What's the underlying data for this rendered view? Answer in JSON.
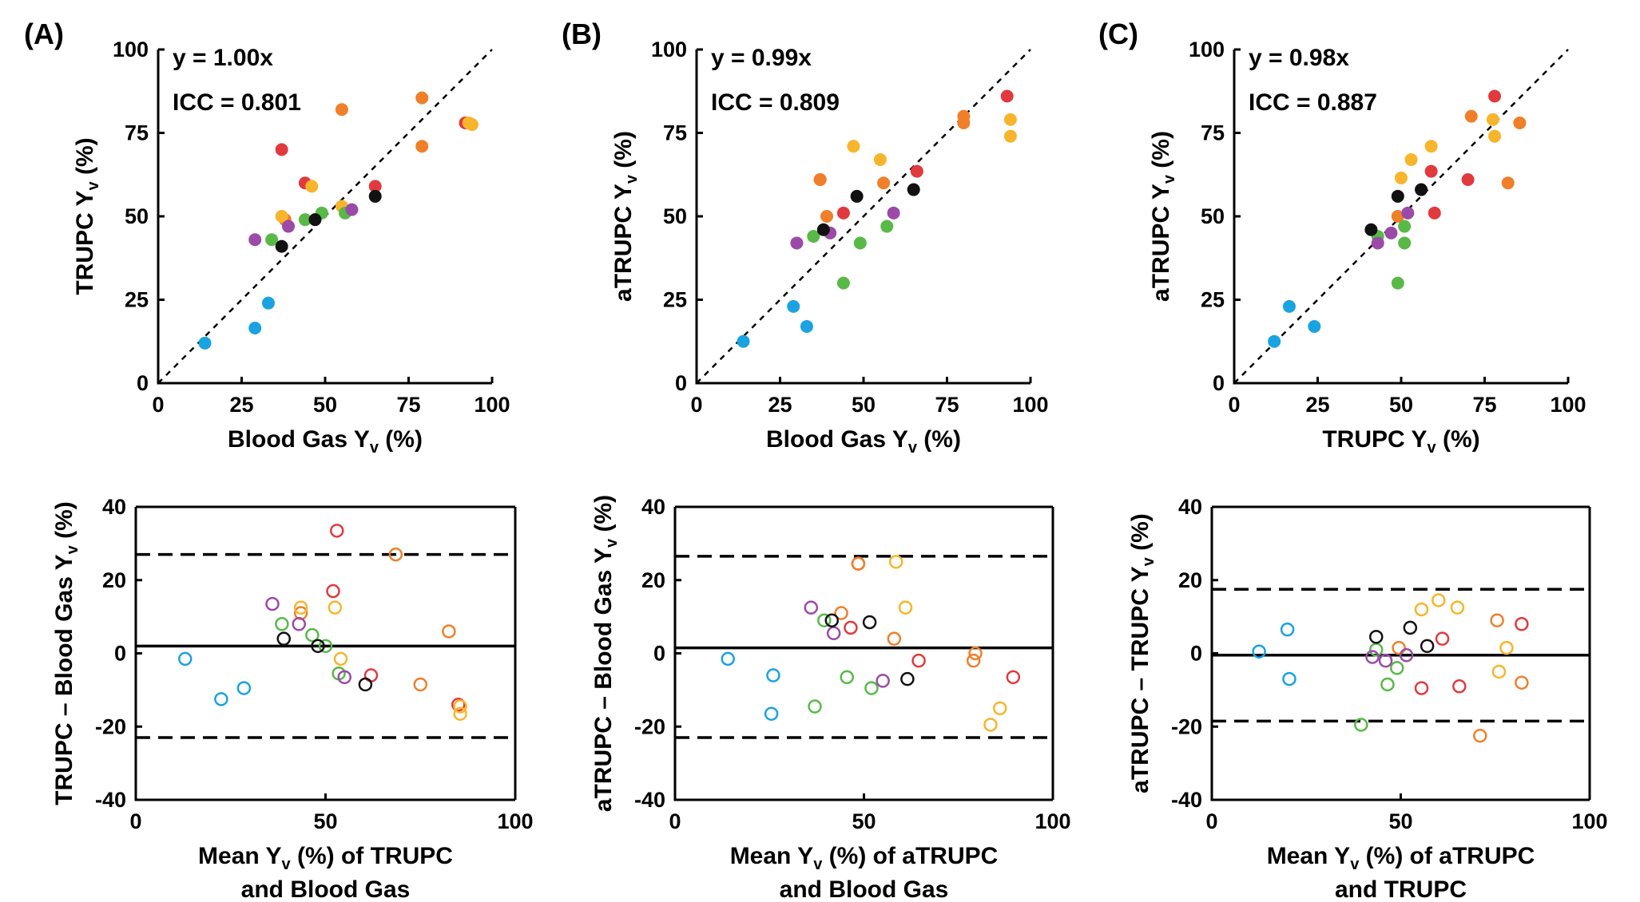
{
  "panel_labels": [
    "(A)",
    "(B)",
    "(C)"
  ],
  "colors": {
    "blue": "#1aa3e0",
    "red": "#e03a3e",
    "orange": "#f07f2a",
    "yellow": "#f7b52b",
    "green": "#58b947",
    "purple": "#9b4aa8",
    "black": "#111111"
  },
  "chart_data": [
    {
      "type": "scatter",
      "panel": "(A)",
      "xlabel": "Blood Gas Y",
      "xlabel_sub": "v",
      "xlabel_suffix": " (%)",
      "ylabel": "TRUPC Y",
      "ylabel_sub": "v",
      "ylabel_suffix": " (%)",
      "xlim": [
        0,
        100
      ],
      "ylim": [
        0,
        100
      ],
      "xticks": [
        "0",
        "25",
        "50",
        "75",
        "100"
      ],
      "yticks": [
        "0",
        "25",
        "50",
        "75",
        "100"
      ],
      "annotations": [
        "y = 1.00x",
        "ICC = 0.801"
      ],
      "identity_line": true,
      "points": [
        {
          "x": 14,
          "y": 12,
          "c": "blue"
        },
        {
          "x": 29,
          "y": 16.5,
          "c": "blue"
        },
        {
          "x": 33,
          "y": 24,
          "c": "blue"
        },
        {
          "x": 37,
          "y": 70,
          "c": "red"
        },
        {
          "x": 44,
          "y": 60,
          "c": "red"
        },
        {
          "x": 65,
          "y": 59,
          "c": "red"
        },
        {
          "x": 92,
          "y": 78,
          "c": "red"
        },
        {
          "x": 55,
          "y": 82,
          "c": "orange"
        },
        {
          "x": 79,
          "y": 85.5,
          "c": "orange"
        },
        {
          "x": 79,
          "y": 71,
          "c": "orange"
        },
        {
          "x": 38,
          "y": 49,
          "c": "orange"
        },
        {
          "x": 37,
          "y": 50,
          "c": "yellow"
        },
        {
          "x": 46,
          "y": 59,
          "c": "yellow"
        },
        {
          "x": 55,
          "y": 53,
          "c": "yellow"
        },
        {
          "x": 93,
          "y": 78,
          "c": "yellow"
        },
        {
          "x": 94,
          "y": 77.5,
          "c": "yellow"
        },
        {
          "x": 34,
          "y": 43,
          "c": "green"
        },
        {
          "x": 44,
          "y": 49,
          "c": "green"
        },
        {
          "x": 49,
          "y": 51,
          "c": "green"
        },
        {
          "x": 56,
          "y": 51,
          "c": "green"
        },
        {
          "x": 29,
          "y": 43,
          "c": "purple"
        },
        {
          "x": 39,
          "y": 47,
          "c": "purple"
        },
        {
          "x": 58,
          "y": 52,
          "c": "purple"
        },
        {
          "x": 37,
          "y": 41,
          "c": "black"
        },
        {
          "x": 47,
          "y": 49,
          "c": "black"
        },
        {
          "x": 65,
          "y": 56,
          "c": "black"
        }
      ]
    },
    {
      "type": "scatter",
      "panel": "(B)",
      "xlabel": "Blood Gas Y",
      "xlabel_sub": "v",
      "xlabel_suffix": " (%)",
      "ylabel": "aTRUPC Y",
      "ylabel_sub": "v",
      "ylabel_suffix": " (%)",
      "xlim": [
        0,
        100
      ],
      "ylim": [
        0,
        100
      ],
      "xticks": [
        "0",
        "25",
        "50",
        "75",
        "100"
      ],
      "yticks": [
        "0",
        "25",
        "50",
        "75",
        "100"
      ],
      "annotations": [
        "y = 0.99x",
        "ICC = 0.809"
      ],
      "identity_line": true,
      "points": [
        {
          "x": 14,
          "y": 12.5,
          "c": "blue"
        },
        {
          "x": 29,
          "y": 23,
          "c": "blue"
        },
        {
          "x": 33,
          "y": 17,
          "c": "blue"
        },
        {
          "x": 37,
          "y": 61,
          "c": "red"
        },
        {
          "x": 44,
          "y": 51,
          "c": "red"
        },
        {
          "x": 66,
          "y": 63.5,
          "c": "red"
        },
        {
          "x": 93,
          "y": 86,
          "c": "red"
        },
        {
          "x": 37,
          "y": 61,
          "c": "orange"
        },
        {
          "x": 39,
          "y": 50,
          "c": "orange"
        },
        {
          "x": 56,
          "y": 60,
          "c": "orange"
        },
        {
          "x": 80,
          "y": 80,
          "c": "orange"
        },
        {
          "x": 80,
          "y": 78,
          "c": "orange"
        },
        {
          "x": 47,
          "y": 71,
          "c": "yellow"
        },
        {
          "x": 55,
          "y": 67,
          "c": "yellow"
        },
        {
          "x": 94,
          "y": 79,
          "c": "yellow"
        },
        {
          "x": 94,
          "y": 74,
          "c": "yellow"
        },
        {
          "x": 44,
          "y": 30,
          "c": "green"
        },
        {
          "x": 49,
          "y": 42,
          "c": "green"
        },
        {
          "x": 57,
          "y": 47,
          "c": "green"
        },
        {
          "x": 35,
          "y": 44,
          "c": "green"
        },
        {
          "x": 30,
          "y": 42,
          "c": "purple"
        },
        {
          "x": 40,
          "y": 45,
          "c": "purple"
        },
        {
          "x": 59,
          "y": 51,
          "c": "purple"
        },
        {
          "x": 38,
          "y": 46,
          "c": "black"
        },
        {
          "x": 48,
          "y": 56,
          "c": "black"
        },
        {
          "x": 65,
          "y": 58,
          "c": "black"
        }
      ]
    },
    {
      "type": "scatter",
      "panel": "(C)",
      "xlabel": "TRUPC Y",
      "xlabel_sub": "v",
      "xlabel_suffix": " (%)",
      "ylabel": "aTRUPC Y",
      "ylabel_sub": "v",
      "ylabel_suffix": " (%)",
      "xlim": [
        0,
        100
      ],
      "ylim": [
        0,
        100
      ],
      "xticks": [
        "0",
        "25",
        "50",
        "75",
        "100"
      ],
      "yticks": [
        "0",
        "25",
        "50",
        "75",
        "100"
      ],
      "annotations": [
        "y = 0.98x",
        "ICC = 0.887"
      ],
      "identity_line": true,
      "points": [
        {
          "x": 12,
          "y": 12.5,
          "c": "blue"
        },
        {
          "x": 16.5,
          "y": 23,
          "c": "blue"
        },
        {
          "x": 24,
          "y": 17,
          "c": "blue"
        },
        {
          "x": 70,
          "y": 61,
          "c": "red"
        },
        {
          "x": 60,
          "y": 51,
          "c": "red"
        },
        {
          "x": 59,
          "y": 63.5,
          "c": "red"
        },
        {
          "x": 78,
          "y": 86,
          "c": "red"
        },
        {
          "x": 49,
          "y": 50,
          "c": "orange"
        },
        {
          "x": 82,
          "y": 60,
          "c": "orange"
        },
        {
          "x": 85.5,
          "y": 78,
          "c": "orange"
        },
        {
          "x": 71,
          "y": 80,
          "c": "orange"
        },
        {
          "x": 50,
          "y": 61.5,
          "c": "yellow"
        },
        {
          "x": 53,
          "y": 67,
          "c": "yellow"
        },
        {
          "x": 59,
          "y": 71,
          "c": "yellow"
        },
        {
          "x": 77.5,
          "y": 79,
          "c": "yellow"
        },
        {
          "x": 78,
          "y": 74,
          "c": "yellow"
        },
        {
          "x": 43,
          "y": 44,
          "c": "green"
        },
        {
          "x": 49,
          "y": 30,
          "c": "green"
        },
        {
          "x": 51,
          "y": 42,
          "c": "green"
        },
        {
          "x": 51,
          "y": 47,
          "c": "green"
        },
        {
          "x": 43,
          "y": 42,
          "c": "purple"
        },
        {
          "x": 47,
          "y": 45,
          "c": "purple"
        },
        {
          "x": 52,
          "y": 51,
          "c": "purple"
        },
        {
          "x": 41,
          "y": 46,
          "c": "black"
        },
        {
          "x": 49,
          "y": 56,
          "c": "black"
        },
        {
          "x": 56,
          "y": 58,
          "c": "black"
        }
      ]
    },
    {
      "type": "scatter",
      "panel": "(A)",
      "subtype": "bland-altman",
      "xlabel": "Mean Y",
      "xlabel_sub": "v",
      "xlabel_suffix": " (%) of TRUPC",
      "xlabel_line2": "and Blood Gas",
      "ylabel": "TRUPC – Blood Gas Y",
      "ylabel_sub": "v",
      "ylabel_suffix": " (%)",
      "xlim": [
        0,
        100
      ],
      "ylim": [
        -40,
        40
      ],
      "xticks": [
        "0",
        "50",
        "100"
      ],
      "yticks": [
        "-40",
        "-20",
        "0",
        "20",
        "40"
      ],
      "mean_line": 2,
      "limits_of_agreement": [
        27,
        -23
      ],
      "points": [
        {
          "x": 13,
          "y": -1.5,
          "c": "blue"
        },
        {
          "x": 22.5,
          "y": -12.5,
          "c": "blue"
        },
        {
          "x": 28.5,
          "y": -9.5,
          "c": "blue"
        },
        {
          "x": 53,
          "y": 33.5,
          "c": "red"
        },
        {
          "x": 52,
          "y": 17,
          "c": "red"
        },
        {
          "x": 62,
          "y": -6,
          "c": "red"
        },
        {
          "x": 85,
          "y": -14,
          "c": "red"
        },
        {
          "x": 68.5,
          "y": 27,
          "c": "orange"
        },
        {
          "x": 75,
          "y": -8.5,
          "c": "orange"
        },
        {
          "x": 82.5,
          "y": 6,
          "c": "orange"
        },
        {
          "x": 43.5,
          "y": 11,
          "c": "orange"
        },
        {
          "x": 43.5,
          "y": 12.5,
          "c": "yellow"
        },
        {
          "x": 52.5,
          "y": 12.5,
          "c": "yellow"
        },
        {
          "x": 54,
          "y": -1.5,
          "c": "yellow"
        },
        {
          "x": 85.5,
          "y": -14.5,
          "c": "yellow"
        },
        {
          "x": 85.5,
          "y": -16.5,
          "c": "yellow"
        },
        {
          "x": 38.5,
          "y": 8,
          "c": "green"
        },
        {
          "x": 46.5,
          "y": 5,
          "c": "green"
        },
        {
          "x": 50,
          "y": 2,
          "c": "green"
        },
        {
          "x": 53.5,
          "y": -5.5,
          "c": "green"
        },
        {
          "x": 36,
          "y": 13.5,
          "c": "purple"
        },
        {
          "x": 43,
          "y": 8,
          "c": "purple"
        },
        {
          "x": 55,
          "y": -6.5,
          "c": "purple"
        },
        {
          "x": 39,
          "y": 4,
          "c": "black"
        },
        {
          "x": 48,
          "y": 2,
          "c": "black"
        },
        {
          "x": 60.5,
          "y": -8.5,
          "c": "black"
        }
      ]
    },
    {
      "type": "scatter",
      "panel": "(B)",
      "subtype": "bland-altman",
      "xlabel": "Mean Y",
      "xlabel_sub": "v",
      "xlabel_suffix": " (%) of aTRUPC",
      "xlabel_line2": "and Blood Gas",
      "ylabel": "aTRUPC – Blood Gas Y",
      "ylabel_sub": "v",
      "ylabel_suffix": " (%)",
      "xlim": [
        0,
        100
      ],
      "ylim": [
        -40,
        40
      ],
      "xticks": [
        "0",
        "50",
        "100"
      ],
      "yticks": [
        "-40",
        "-20",
        "0",
        "20",
        "40"
      ],
      "mean_line": 1.5,
      "limits_of_agreement": [
        26.5,
        -23
      ],
      "points": [
        {
          "x": 14,
          "y": -1.5,
          "c": "blue"
        },
        {
          "x": 26,
          "y": -6,
          "c": "blue"
        },
        {
          "x": 25.5,
          "y": -16.5,
          "c": "blue"
        },
        {
          "x": 48.5,
          "y": 24.5,
          "c": "red"
        },
        {
          "x": 46.5,
          "y": 7,
          "c": "red"
        },
        {
          "x": 64.5,
          "y": -2,
          "c": "red"
        },
        {
          "x": 89.5,
          "y": -6.5,
          "c": "red"
        },
        {
          "x": 48.5,
          "y": 24.5,
          "c": "orange"
        },
        {
          "x": 44,
          "y": 11,
          "c": "orange"
        },
        {
          "x": 58,
          "y": 4,
          "c": "orange"
        },
        {
          "x": 79.5,
          "y": 0,
          "c": "orange"
        },
        {
          "x": 79,
          "y": -2,
          "c": "orange"
        },
        {
          "x": 58.5,
          "y": 25,
          "c": "yellow"
        },
        {
          "x": 61,
          "y": 12.5,
          "c": "yellow"
        },
        {
          "x": 86,
          "y": -15,
          "c": "yellow"
        },
        {
          "x": 83.5,
          "y": -19.5,
          "c": "yellow"
        },
        {
          "x": 37,
          "y": -14.5,
          "c": "green"
        },
        {
          "x": 45.5,
          "y": -6.5,
          "c": "green"
        },
        {
          "x": 52,
          "y": -9.5,
          "c": "green"
        },
        {
          "x": 39.5,
          "y": 9,
          "c": "green"
        },
        {
          "x": 36,
          "y": 12.5,
          "c": "purple"
        },
        {
          "x": 42,
          "y": 5.5,
          "c": "purple"
        },
        {
          "x": 55,
          "y": -7.5,
          "c": "purple"
        },
        {
          "x": 41.5,
          "y": 9,
          "c": "black"
        },
        {
          "x": 51.5,
          "y": 8.5,
          "c": "black"
        },
        {
          "x": 61.5,
          "y": -7,
          "c": "black"
        }
      ]
    },
    {
      "type": "scatter",
      "panel": "(C)",
      "subtype": "bland-altman",
      "xlabel": "Mean Y",
      "xlabel_sub": "v",
      "xlabel_suffix": " (%) of aTRUPC",
      "xlabel_line2": "and TRUPC",
      "ylabel": "aTRUPC – TRUPC Y",
      "ylabel_sub": "v",
      "ylabel_suffix": " (%)",
      "xlim": [
        0,
        100
      ],
      "ylim": [
        -40,
        40
      ],
      "xticks": [
        "0",
        "50",
        "100"
      ],
      "yticks": [
        "-40",
        "-20",
        "0",
        "20",
        "40"
      ],
      "mean_line": -0.5,
      "limits_of_agreement": [
        17.5,
        -18.5
      ],
      "points": [
        {
          "x": 12.5,
          "y": 0.5,
          "c": "blue"
        },
        {
          "x": 20,
          "y": 6.5,
          "c": "blue"
        },
        {
          "x": 20.5,
          "y": -7,
          "c": "blue"
        },
        {
          "x": 65.5,
          "y": -9,
          "c": "red"
        },
        {
          "x": 55.5,
          "y": -9.5,
          "c": "red"
        },
        {
          "x": 61,
          "y": 4,
          "c": "red"
        },
        {
          "x": 82,
          "y": 8,
          "c": "red"
        },
        {
          "x": 49.5,
          "y": 1.5,
          "c": "orange"
        },
        {
          "x": 71,
          "y": -22.5,
          "c": "orange"
        },
        {
          "x": 82,
          "y": -8,
          "c": "orange"
        },
        {
          "x": 75.5,
          "y": 9,
          "c": "orange"
        },
        {
          "x": 55.5,
          "y": 12,
          "c": "yellow"
        },
        {
          "x": 60,
          "y": 14.5,
          "c": "yellow"
        },
        {
          "x": 65,
          "y": 12.5,
          "c": "yellow"
        },
        {
          "x": 78,
          "y": 1.5,
          "c": "yellow"
        },
        {
          "x": 76,
          "y": -5,
          "c": "yellow"
        },
        {
          "x": 43.5,
          "y": 1,
          "c": "green"
        },
        {
          "x": 39.5,
          "y": -19.5,
          "c": "green"
        },
        {
          "x": 46.5,
          "y": -8.5,
          "c": "green"
        },
        {
          "x": 49,
          "y": -4,
          "c": "green"
        },
        {
          "x": 42.5,
          "y": -1,
          "c": "purple"
        },
        {
          "x": 46,
          "y": -2,
          "c": "purple"
        },
        {
          "x": 51.5,
          "y": -0.5,
          "c": "purple"
        },
        {
          "x": 43.5,
          "y": 4.5,
          "c": "black"
        },
        {
          "x": 52.5,
          "y": 7,
          "c": "black"
        },
        {
          "x": 57,
          "y": 2,
          "c": "black"
        }
      ]
    }
  ]
}
